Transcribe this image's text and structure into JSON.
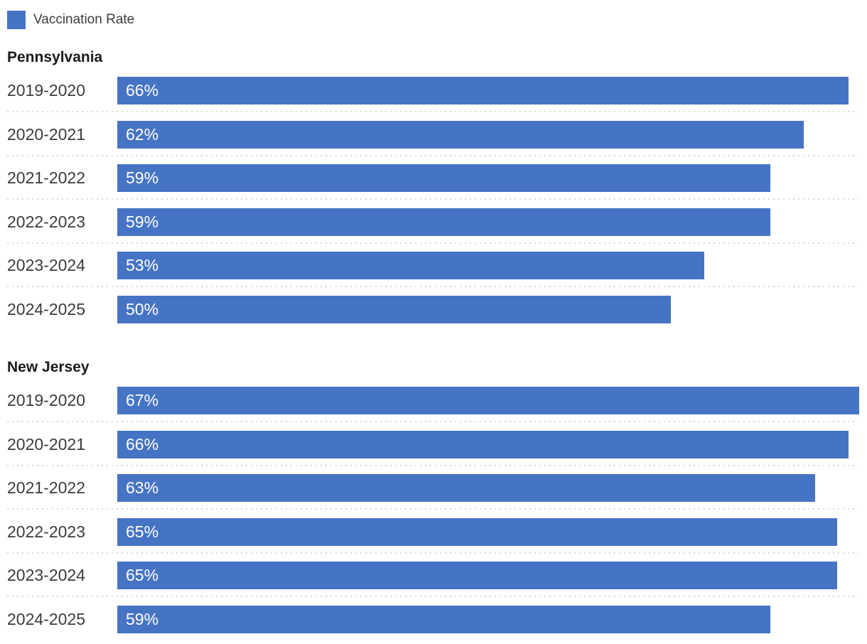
{
  "legend": {
    "label": "Vaccination Rate",
    "swatch_color": "#4674c5"
  },
  "chart_data": {
    "type": "bar",
    "orientation": "horizontal",
    "legend": [
      "Vaccination Rate"
    ],
    "legend_position": "top-left",
    "unit": "percent",
    "grid": false,
    "value_label_position": "inside-start",
    "scale_max": 67.7,
    "bar_color": "#4674c5",
    "value_label_color": "#ffffff",
    "separator_color": "#d8d8d8",
    "groups": [
      {
        "title": "Pennsylvania",
        "categories": [
          "2019-2020",
          "2020-2021",
          "2021-2022",
          "2022-2023",
          "2023-2024",
          "2024-2025"
        ],
        "values": [
          66,
          62,
          59,
          59,
          53,
          50
        ],
        "value_labels": [
          "66%",
          "62%",
          "59%",
          "59%",
          "53%",
          "50%"
        ]
      },
      {
        "title": "New Jersey",
        "categories": [
          "2019-2020",
          "2020-2021",
          "2021-2022",
          "2022-2023",
          "2023-2024",
          "2024-2025"
        ],
        "values": [
          67,
          66,
          63,
          65,
          65,
          59
        ],
        "value_labels": [
          "67%",
          "66%",
          "63%",
          "65%",
          "65%",
          "59%"
        ]
      }
    ]
  }
}
